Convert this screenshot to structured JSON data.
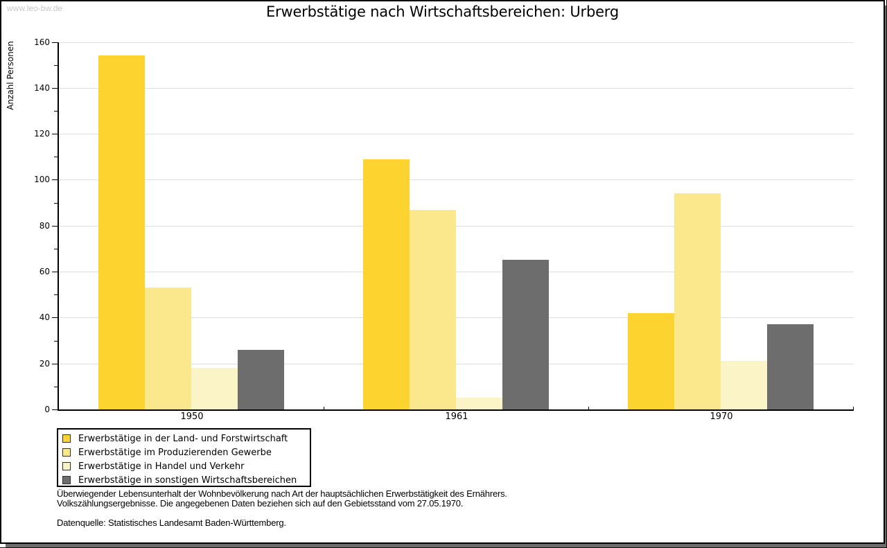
{
  "watermark": "www.leo-bw.de",
  "chart_data": {
    "type": "bar",
    "title": "Erwerbstätige nach Wirtschaftsbereichen: Urberg",
    "ylabel": "Anzahl Personen",
    "xlabel": "",
    "ylim": [
      0,
      160
    ],
    "ytick_major": 20,
    "ytick_minor": 10,
    "grid": "horizontal",
    "legend_position": "bottom-left",
    "categories": [
      "1950",
      "1961",
      "1970"
    ],
    "series": [
      {
        "name": "Erwerbstätige in der Land- und Forstwirtschaft",
        "color": "#FCD32F",
        "values": [
          154,
          109,
          42
        ]
      },
      {
        "name": "Erwerbstätige im Produzierenden Gewerbe",
        "color": "#FCE88C",
        "values": [
          53,
          87,
          94
        ]
      },
      {
        "name": "Erwerbstätige in Handel und Verkehr",
        "color": "#FBF4C7",
        "values": [
          18,
          5,
          21
        ]
      },
      {
        "name": "Erwerbstätige in sonstigen Wirtschaftsbereichen",
        "color": "#6D6D6D",
        "values": [
          26,
          65,
          37
        ]
      }
    ]
  },
  "footnotes": {
    "line1": "Überwiegender Lebensunterhalt der Wohnbevölkerung nach Art der hauptsächlichen Erwerbstätigkeit des Ernährers.",
    "line2": "Volkszählungsergebnisse. Die angegebenen Daten beziehen sich auf den Gebietsstand vom 27.05.1970.",
    "source": "Datenquelle: Statistisches Landesamt Baden-Württemberg."
  },
  "colors": {
    "grid": "#DEDEDE",
    "axis": "#000000",
    "frame_shadow": "#6B6B6B",
    "watermark": "#C8C8C8"
  }
}
